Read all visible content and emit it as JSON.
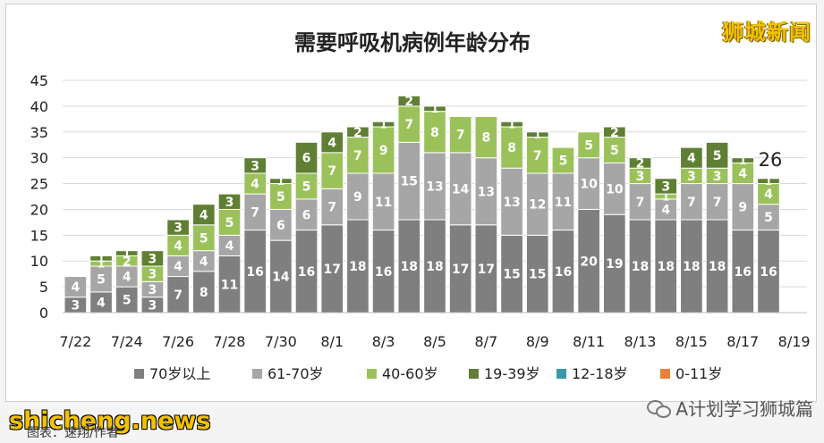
{
  "watermark_top": "狮城新闻",
  "watermark_bottom": "shicheng.news",
  "source_note": "图表：速翔/作者",
  "wechat_label": "A计划学习狮城篇",
  "colors": {
    "70+": "#7f7f7f",
    "61-70": "#a6a6a6",
    "40-60": "#9bc25a",
    "19-39": "#5f7f34",
    "12-18": "#3a97a8",
    "0-11": "#e8823a"
  },
  "chart_data": {
    "type": "bar",
    "stacked": true,
    "title": "需要呼吸机病例年龄分布",
    "ylim": [
      0,
      45
    ],
    "yticks": [
      0,
      5,
      10,
      15,
      20,
      25,
      30,
      35,
      40,
      45
    ],
    "grid": true,
    "legend_position": "bottom",
    "categories": [
      "7/22",
      "7/23",
      "7/24",
      "7/25",
      "7/26",
      "7/27",
      "7/28",
      "7/29",
      "7/30",
      "7/31",
      "8/1",
      "8/2",
      "8/3",
      "8/4",
      "8/5",
      "8/6",
      "8/7",
      "8/8",
      "8/9",
      "8/10",
      "8/11",
      "8/12",
      "8/13",
      "8/14",
      "8/15",
      "8/16",
      "8/17",
      "8/18",
      "8/19"
    ],
    "xtick_labels": [
      "7/22",
      "7/24",
      "7/26",
      "7/28",
      "7/30",
      "8/1",
      "8/3",
      "8/5",
      "8/7",
      "8/9",
      "8/11",
      "8/13",
      "8/15",
      "8/17",
      "8/19"
    ],
    "series": [
      {
        "name": "70岁以上",
        "key": "70+",
        "values": [
          3,
          4,
          5,
          3,
          7,
          8,
          11,
          16,
          14,
          16,
          17,
          18,
          16,
          18,
          18,
          17,
          17,
          15,
          15,
          16,
          20,
          19,
          18,
          18,
          18,
          18,
          16,
          16,
          null
        ]
      },
      {
        "name": "61-70岁",
        "key": "61-70",
        "values": [
          4,
          5,
          4,
          3,
          4,
          4,
          4,
          7,
          6,
          6,
          7,
          9,
          11,
          15,
          13,
          14,
          13,
          13,
          12,
          11,
          10,
          10,
          7,
          4,
          7,
          7,
          9,
          5,
          null
        ]
      },
      {
        "name": "40-60岁",
        "key": "40-60",
        "values": [
          0,
          1,
          2,
          3,
          4,
          5,
          5,
          4,
          5,
          5,
          7,
          7,
          9,
          7,
          8,
          7,
          8,
          8,
          7,
          5,
          5,
          5,
          3,
          1,
          3,
          3,
          4,
          4,
          null
        ]
      },
      {
        "name": "19-39岁",
        "key": "19-39",
        "values": [
          0,
          1,
          1,
          3,
          3,
          4,
          3,
          3,
          1,
          6,
          4,
          2,
          1,
          2,
          1,
          0,
          0,
          1,
          1,
          0,
          0,
          2,
          2,
          3,
          4,
          5,
          1,
          1,
          null
        ]
      },
      {
        "name": "12-18岁",
        "key": "12-18",
        "values": [
          0,
          0,
          0,
          0,
          0,
          0,
          0,
          0,
          0,
          0,
          0,
          0,
          0,
          0,
          0,
          0,
          0,
          0,
          0,
          0,
          0,
          0,
          0,
          0,
          0,
          0,
          0,
          0,
          null
        ]
      },
      {
        "name": "0-11岁",
        "key": "0-11",
        "values": [
          0,
          0,
          0,
          0,
          0,
          0,
          0,
          0,
          0,
          0,
          0,
          0,
          0,
          0,
          0,
          0,
          0,
          0,
          0,
          0,
          0,
          0,
          0,
          0,
          0,
          0,
          0,
          0,
          null
        ]
      }
    ],
    "annotation": {
      "category": "8/18",
      "text": "26"
    }
  }
}
